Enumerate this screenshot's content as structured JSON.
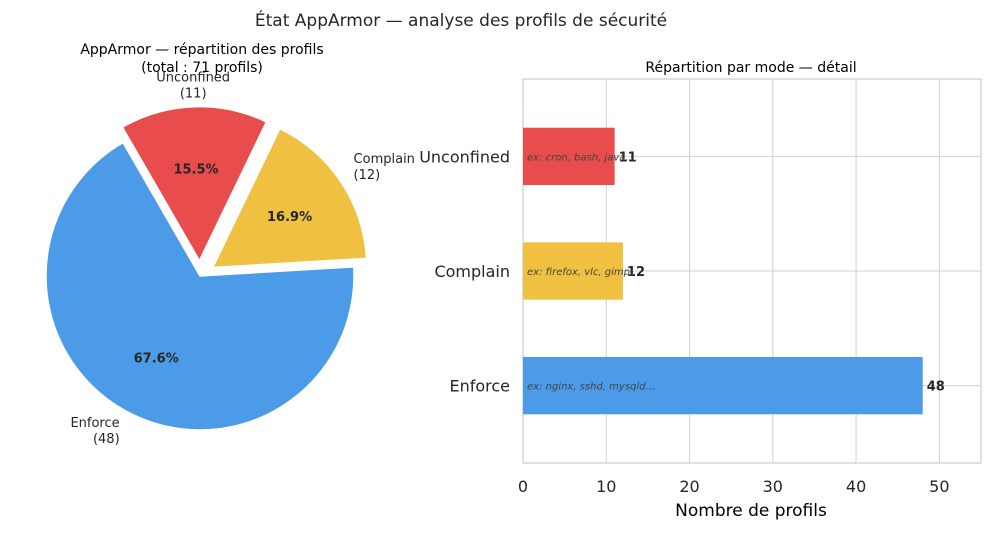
{
  "suptitle": "État AppArmor — analyse des profils de sécurité",
  "colors": {
    "enforce": "#4C9BE8",
    "complain": "#F0C040",
    "unconfined": "#E84C4C",
    "grid": "#d0d0d0",
    "axes": "#cccccc",
    "text": "#262626",
    "example_text": "#444444"
  },
  "chart_data": [
    {
      "type": "pie",
      "title": "AppArmor — répartition des profils",
      "subtitle": "(total : 71 profils)",
      "slices": [
        {
          "key": "enforce",
          "label": "Enforce",
          "count_label": "(48)",
          "value": 48,
          "pct_label": "67.6%",
          "exploded": false
        },
        {
          "key": "complain",
          "label": "Complain",
          "count_label": "(12)",
          "value": 12,
          "pct_label": "16.9%",
          "exploded": true
        },
        {
          "key": "unconfined",
          "label": "Unconfined",
          "count_label": "(11)",
          "value": 11,
          "pct_label": "15.5%",
          "exploded": true
        }
      ]
    },
    {
      "type": "bar",
      "orientation": "horizontal",
      "title": "Répartition par mode — détail",
      "xlabel": "Nombre de profils",
      "ylabel": "",
      "xlim": [
        0,
        55
      ],
      "xticks": [
        0,
        10,
        20,
        30,
        40,
        50
      ],
      "grid": true,
      "categories": [
        "Enforce",
        "Complain",
        "Unconfined"
      ],
      "values": [
        48,
        12,
        11
      ],
      "value_labels": [
        "48",
        "12",
        "11"
      ],
      "examples": [
        "ex: nginx, sshd, mysqld...",
        "ex: firefox, vlc, gimp...",
        "ex: cron, bash, java..."
      ],
      "color_keys": [
        "enforce",
        "complain",
        "unconfined"
      ]
    }
  ]
}
